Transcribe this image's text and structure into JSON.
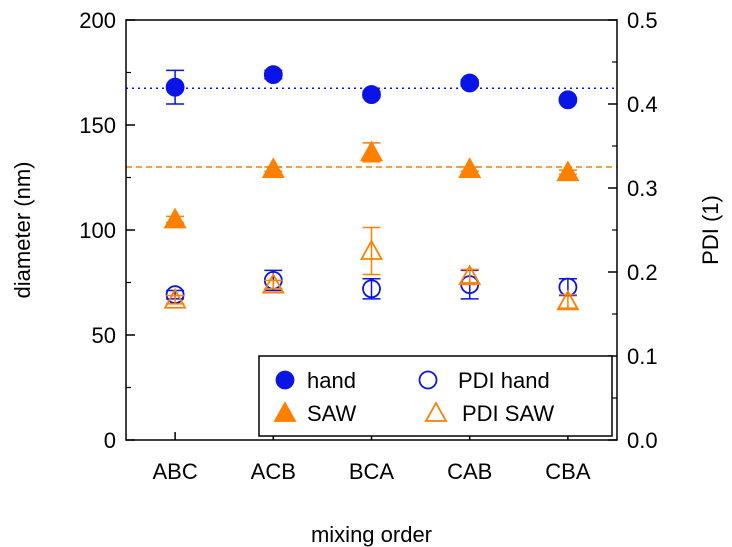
{
  "chart_data": {
    "type": "scatter",
    "xlabel": "mixing order",
    "ylabel": "diameter (nm)",
    "y2label": "PDI (1)",
    "categories": [
      "ABC",
      "ACB",
      "BCA",
      "CAB",
      "CBA"
    ],
    "ylim": [
      0,
      200
    ],
    "y2lim": [
      0.0,
      0.5
    ],
    "y_ticks": [
      0,
      50,
      100,
      150,
      200
    ],
    "y_tick_labels": [
      "0",
      "50",
      "100",
      "150",
      "200"
    ],
    "y2_ticks": [
      0.0,
      0.1,
      0.2,
      0.3,
      0.4,
      0.5
    ],
    "y2_tick_labels": [
      "0.0",
      "0.1",
      "0.2",
      "0.3",
      "0.4",
      "0.5"
    ],
    "legend_position": "bottom-right",
    "series": [
      {
        "name": "hand",
        "axis": "left",
        "marker": "circle-filled",
        "color": "#0a14e6",
        "values": [
          168,
          174,
          164.5,
          170,
          162
        ],
        "errors": [
          8,
          2,
          1.5,
          1.5,
          1
        ]
      },
      {
        "name": "SAW",
        "axis": "left",
        "marker": "triangle-filled",
        "color": "#ff8000",
        "values": [
          105,
          129,
          137,
          129,
          127.5
        ],
        "errors": [
          1.5,
          1,
          4.5,
          1,
          1
        ]
      },
      {
        "name": "PDI hand",
        "axis": "right",
        "marker": "circle-open",
        "color": "#0a14e6",
        "values": [
          0.173,
          0.19,
          0.18,
          0.185,
          0.182
        ],
        "errors": [
          0.005,
          0.012,
          0.012,
          0.017,
          0.01
        ]
      },
      {
        "name": "PDI SAW",
        "axis": "right",
        "marker": "triangle-open",
        "color": "#ff8000",
        "values": [
          0.167,
          0.185,
          0.225,
          0.195,
          0.165
        ],
        "errors": [
          0.005,
          0.005,
          0.028,
          0.008,
          0.008
        ]
      }
    ],
    "reference_lines": [
      {
        "axis": "left",
        "value": 167.5,
        "style": "dotted",
        "color": "#0a14e6"
      },
      {
        "axis": "left",
        "value": 130,
        "style": "dashed",
        "color": "#ff8000"
      }
    ]
  }
}
